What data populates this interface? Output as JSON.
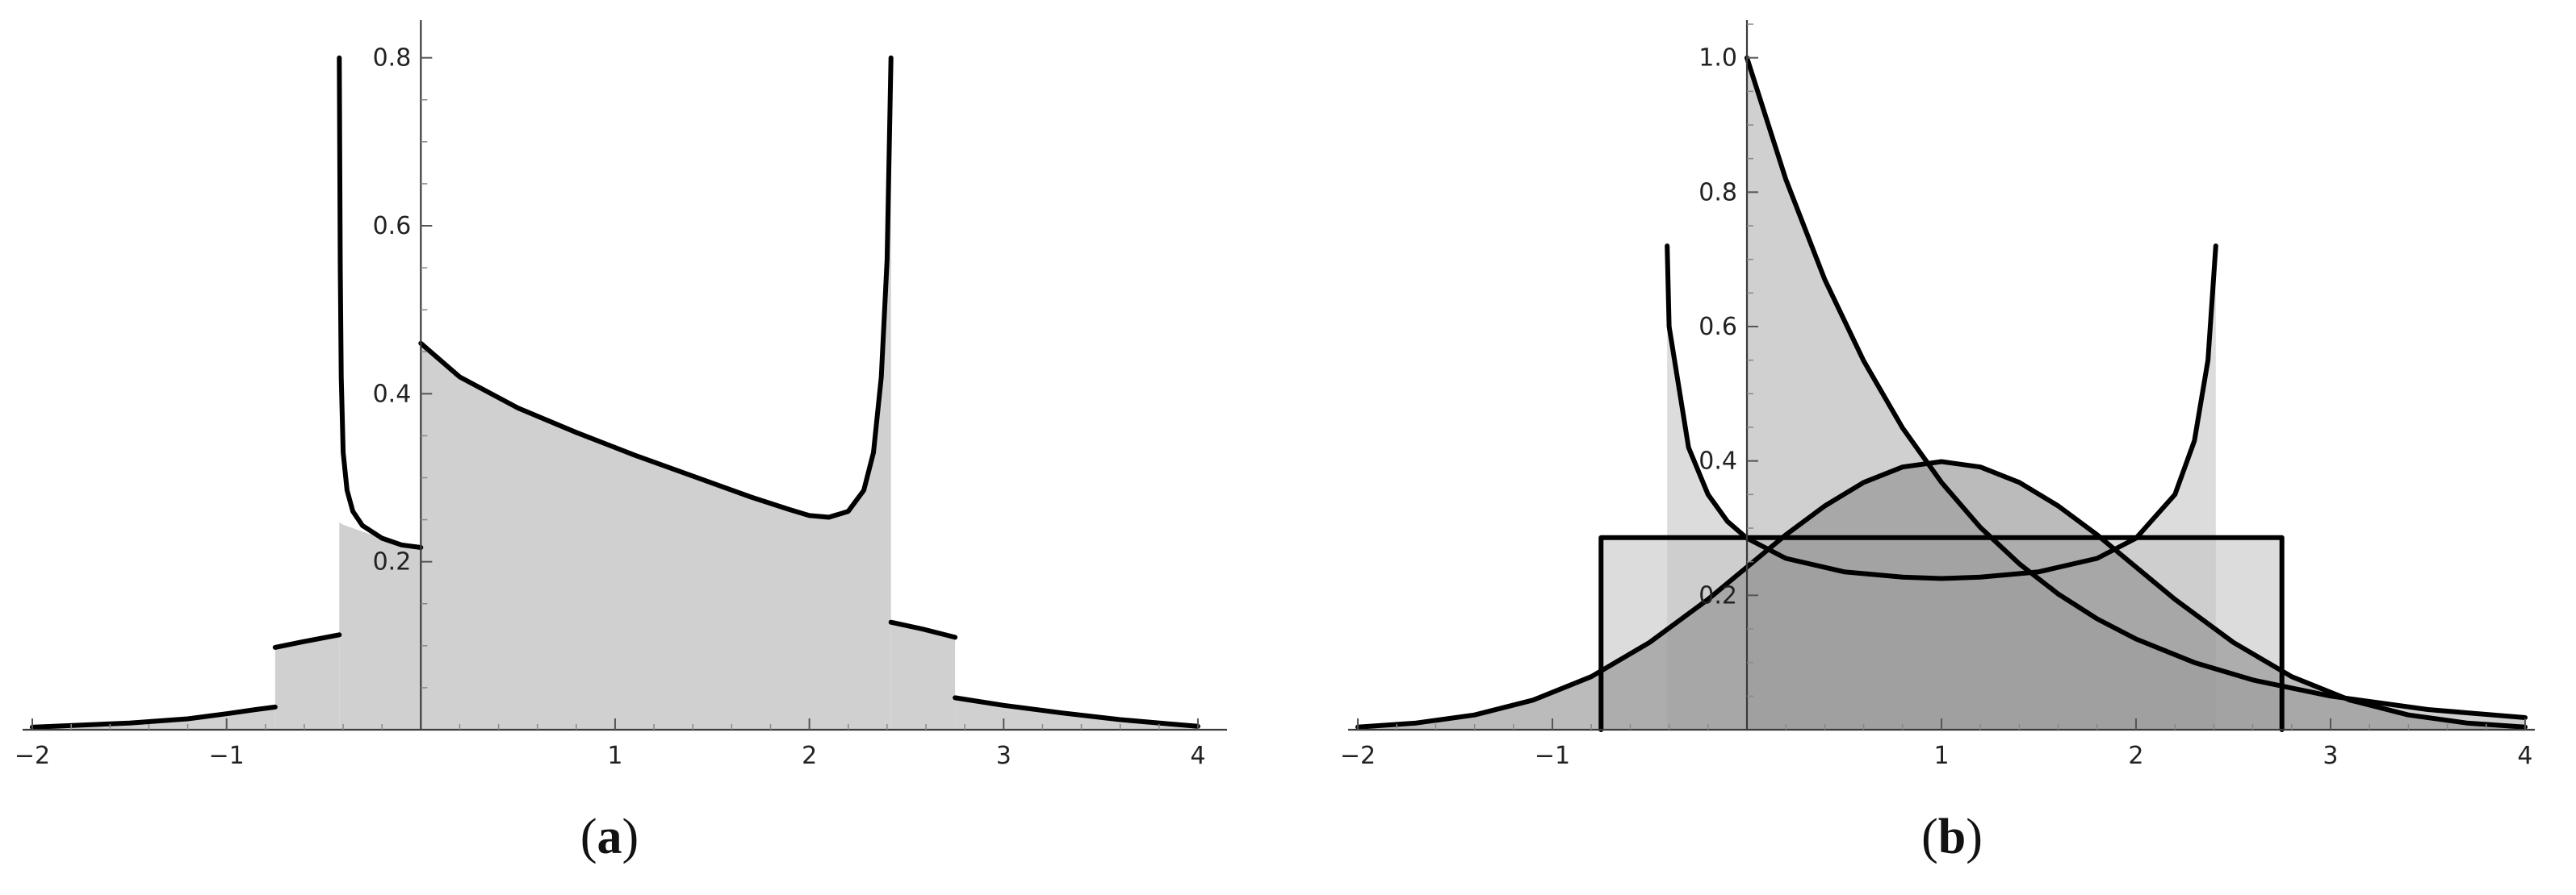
{
  "chart_data": [
    {
      "type": "area",
      "panel_label": "a",
      "xlim": [
        -2.05,
        4.15
      ],
      "ylim": [
        0,
        0.84
      ],
      "x_ticks": [
        -2,
        -1,
        1,
        2,
        3,
        4
      ],
      "x_tick_labels": [
        "−2",
        "−1",
        "1",
        "2",
        "3",
        "4"
      ],
      "y_ticks": [
        0.2,
        0.4,
        0.6,
        0.8
      ],
      "y_tick_labels": [
        "0.2",
        "0.4",
        "0.6",
        "0.8"
      ],
      "grid": false,
      "fill_color": "#d0d0d0",
      "curve_color": "#000000",
      "series": [
        {
          "segments": [
            {
              "x": [
                -2.0,
                -1.5,
                -1.2,
                -1.0,
                -0.85,
                -0.75
              ],
              "y": [
                0.003,
                0.008,
                0.013,
                0.019,
                0.024,
                0.027
              ]
            },
            {
              "x": [
                -0.75,
                -0.6,
                -0.42
              ],
              "y": [
                0.098,
                0.105,
                0.113
              ]
            },
            {
              "x": [
                -0.42,
                -0.415,
                -0.41,
                -0.4,
                -0.38,
                -0.35,
                -0.3,
                -0.2,
                -0.1,
                0.0
              ],
              "y": [
                0.8,
                0.55,
                0.42,
                0.33,
                0.285,
                0.26,
                0.243,
                0.228,
                0.22,
                0.217
              ]
            },
            {
              "x": [
                0.0,
                0.2,
                0.5,
                0.8,
                1.1,
                1.4,
                1.7,
                1.9,
                2.0,
                2.1,
                2.2,
                2.28,
                2.33,
                2.37,
                2.4,
                2.42
              ],
              "y": [
                0.46,
                0.42,
                0.383,
                0.354,
                0.327,
                0.302,
                0.277,
                0.262,
                0.255,
                0.253,
                0.26,
                0.285,
                0.33,
                0.42,
                0.56,
                0.8
              ]
            },
            {
              "x": [
                2.42,
                2.58,
                2.75
              ],
              "y": [
                0.128,
                0.12,
                0.11
              ]
            },
            {
              "x": [
                2.75,
                3.0,
                3.3,
                3.6,
                3.85,
                4.0
              ],
              "y": [
                0.038,
                0.029,
                0.02,
                0.012,
                0.007,
                0.004
              ]
            }
          ],
          "fill_regions": [
            {
              "x": [
                -2.0,
                -1.5,
                -1.2,
                -1.0,
                -0.85,
                -0.75
              ],
              "y": [
                0.003,
                0.008,
                0.013,
                0.019,
                0.024,
                0.027
              ]
            },
            {
              "x": [
                -0.75,
                -0.6,
                -0.42
              ],
              "y": [
                0.098,
                0.105,
                0.113
              ]
            },
            {
              "x": [
                -0.42,
                -0.4,
                -0.3,
                -0.2,
                -0.1,
                0.0
              ],
              "y": [
                0.247,
                0.244,
                0.236,
                0.228,
                0.22,
                0.217
              ]
            },
            {
              "x": [
                0.0,
                0.2,
                0.5,
                0.8,
                1.1,
                1.4,
                1.7,
                1.9,
                2.0,
                2.1,
                2.2,
                2.28,
                2.33,
                2.37,
                2.4,
                2.42
              ],
              "y": [
                0.46,
                0.42,
                0.383,
                0.354,
                0.327,
                0.302,
                0.277,
                0.262,
                0.255,
                0.253,
                0.26,
                0.285,
                0.33,
                0.42,
                0.56,
                0.8
              ]
            },
            {
              "x": [
                2.42,
                2.58,
                2.75
              ],
              "y": [
                0.128,
                0.12,
                0.11
              ]
            },
            {
              "x": [
                2.75,
                3.0,
                3.3,
                3.6,
                3.85,
                4.0
              ],
              "y": [
                0.038,
                0.029,
                0.02,
                0.012,
                0.007,
                0.004
              ]
            }
          ]
        }
      ]
    },
    {
      "type": "area",
      "panel_label": "b",
      "xlim": [
        -2.05,
        4.05
      ],
      "ylim": [
        0,
        1.05
      ],
      "x_ticks": [
        -2,
        -1,
        1,
        2,
        3,
        4
      ],
      "x_tick_labels": [
        "−2",
        "−1",
        "1",
        "2",
        "3",
        "4"
      ],
      "y_ticks": [
        0.2,
        0.4,
        0.6,
        0.8,
        1.0
      ],
      "y_tick_labels": [
        "0.2",
        "0.4",
        "0.6",
        "0.8",
        "1.0"
      ],
      "grid": false,
      "curve_color": "#000000",
      "series": [
        {
          "fill_color": "#c4c4c4",
          "x": [
            -0.75,
            -0.75,
            2.75,
            2.75
          ],
          "y": [
            0,
            0.286,
            0.286,
            0
          ]
        },
        {
          "fill_color": "#c4c4c4",
          "x": [
            -0.41,
            -0.4,
            -0.3,
            -0.2,
            -0.1,
            0.0,
            0.2,
            0.5,
            0.8,
            1.0,
            1.2,
            1.5,
            1.8,
            2.0,
            2.2,
            2.3,
            2.37,
            2.41
          ],
          "y": [
            0.72,
            0.6,
            0.42,
            0.35,
            0.31,
            0.285,
            0.255,
            0.235,
            0.227,
            0.225,
            0.227,
            0.235,
            0.255,
            0.285,
            0.35,
            0.43,
            0.55,
            0.72
          ]
        },
        {
          "fill_color": "#b0b0b0",
          "x": [
            0.0,
            0.2,
            0.4,
            0.6,
            0.8,
            1.0,
            1.2,
            1.4,
            1.6,
            1.8,
            2.0,
            2.3,
            2.6,
            3.0,
            3.5,
            4.0
          ],
          "y": [
            1.0,
            0.819,
            0.67,
            0.549,
            0.449,
            0.368,
            0.301,
            0.247,
            0.202,
            0.165,
            0.135,
            0.1,
            0.074,
            0.05,
            0.03,
            0.018
          ]
        },
        {
          "fill_color": "#8e8e8e",
          "x": [
            -2.0,
            -1.7,
            -1.4,
            -1.1,
            -0.8,
            -0.5,
            -0.2,
            0.0,
            0.2,
            0.4,
            0.6,
            0.8,
            1.0,
            1.2,
            1.4,
            1.6,
            1.8,
            2.0,
            2.2,
            2.5,
            2.8,
            3.1,
            3.4,
            3.7,
            4.0
          ],
          "y": [
            0.004,
            0.01,
            0.022,
            0.044,
            0.079,
            0.13,
            0.194,
            0.242,
            0.29,
            0.333,
            0.368,
            0.391,
            0.399,
            0.391,
            0.368,
            0.333,
            0.29,
            0.242,
            0.194,
            0.13,
            0.079,
            0.044,
            0.022,
            0.01,
            0.004
          ]
        }
      ]
    }
  ]
}
